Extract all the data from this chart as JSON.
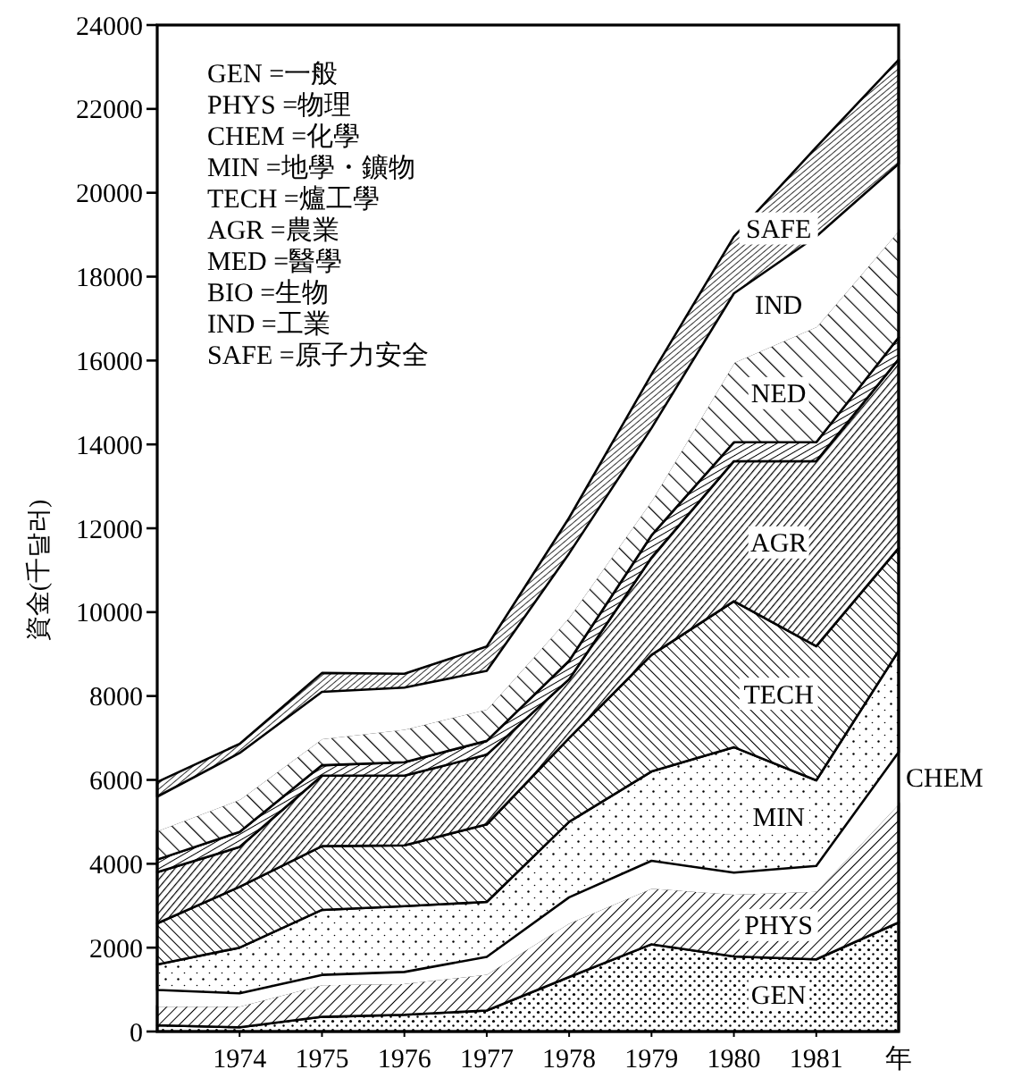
{
  "chart_data": {
    "type": "area",
    "stacked": true,
    "ylabel": "資金(千달러)",
    "xlabel": "年",
    "x": [
      1973,
      1974,
      1975,
      1976,
      1977,
      1978,
      1979,
      1980,
      1981,
      1982
    ],
    "xlim": [
      1973,
      1982
    ],
    "xticks": [
      1974,
      1975,
      1976,
      1977,
      1978,
      1979,
      1980,
      1981
    ],
    "ylim": [
      0,
      24000
    ],
    "yticks": [
      0,
      2000,
      4000,
      6000,
      8000,
      10000,
      12000,
      14000,
      16000,
      18000,
      20000,
      22000,
      24000
    ],
    "grid": false,
    "legend": false,
    "series": [
      {
        "name": "GEN",
        "color": "#000000",
        "values": [
          150,
          100,
          350,
          400,
          500,
          1300,
          2080,
          1790,
          1720,
          2600
        ]
      },
      {
        "name": "PHYS",
        "color": "#000000",
        "values": [
          470,
          520,
          780,
          760,
          880,
          1300,
          1350,
          1500,
          1640,
          2850
        ]
      },
      {
        "name": "CHEM",
        "color": "#ffffff",
        "values": [
          370,
          290,
          220,
          260,
          400,
          600,
          640,
          500,
          590,
          1210
        ]
      },
      {
        "name": "MIN",
        "color": "#000000",
        "values": [
          610,
          1090,
          1550,
          1570,
          1310,
          1800,
          2130,
          2990,
          2040,
          2420
        ]
      },
      {
        "name": "TECH",
        "color": "#000000",
        "values": [
          980,
          1450,
          1520,
          1450,
          1850,
          2000,
          2780,
          3480,
          3200,
          2450
        ]
      },
      {
        "name": "AGR",
        "color": "#000000",
        "values": [
          1220,
          950,
          1680,
          1660,
          1660,
          1400,
          2320,
          3340,
          4410,
          4500
        ]
      },
      {
        "color": "#000000",
        "values": [
          300,
          360,
          250,
          320,
          330,
          440,
          530,
          450,
          450,
          520
        ]
      },
      {
        "name": "NED",
        "color": "#000000",
        "values": [
          700,
          790,
          650,
          800,
          770,
          1060,
          850,
          1920,
          2770,
          2570
        ]
      },
      {
        "name": "IND",
        "color": "#ffffff",
        "values": [
          800,
          1090,
          1100,
          980,
          900,
          1500,
          1710,
          1630,
          2140,
          1570
        ]
      },
      {
        "name": "SAFE",
        "color": "#000000",
        "values": [
          350,
          220,
          450,
          330,
          580,
          850,
          1280,
          1350,
          2130,
          2480
        ]
      }
    ],
    "annotations": [
      "GEN =一般",
      "PHYS =物理",
      "CHEM =化學",
      "MIN =地學・鑛物",
      "TECH =爐工學",
      "AGR =農業",
      "MED =醫學",
      "BIO =生物",
      "IND =工業",
      "SAFE =原子力安全"
    ]
  }
}
